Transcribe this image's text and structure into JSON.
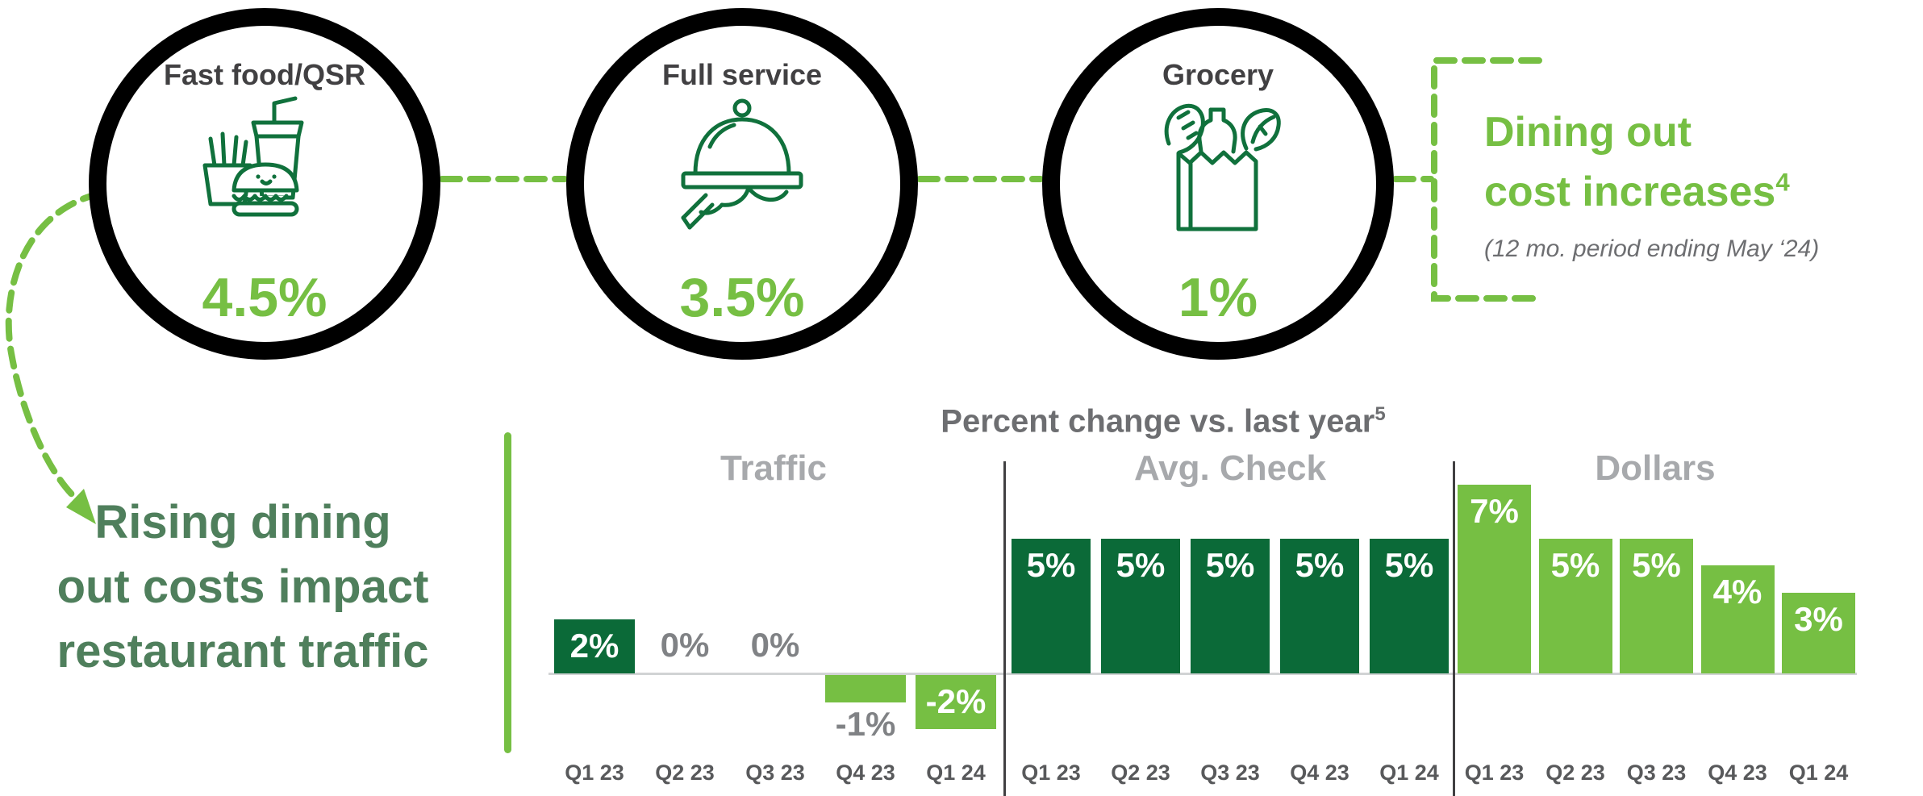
{
  "colors": {
    "dark_green": "#0b6a38",
    "light_green": "#76bf43",
    "icon_green": "#10713c",
    "muted_green": "#4f7f5c",
    "ring_black": "#000000",
    "circle_label_gray": "#414042",
    "title_gray": "#6d6e71",
    "group_header_gray": "#a7a9ac",
    "zero_label_gray": "#808285",
    "category_gray": "#58595b",
    "baseline_gray": "#d1d3d4"
  },
  "circles": [
    {
      "label": "Fast food/QSR",
      "value": "4.5%",
      "icon": "fast-food-icon"
    },
    {
      "label": "Full service",
      "value": "3.5%",
      "icon": "serving-cloche-icon"
    },
    {
      "label": "Grocery",
      "value": "1%",
      "icon": "grocery-bag-icon"
    }
  ],
  "callout": {
    "line1": "Dining out",
    "line2": "cost increases",
    "superscript": "4",
    "subtitle": "(12 mo. period ending May ‘24)"
  },
  "left_note": {
    "line1": "Rising dining",
    "line2": "out costs impact",
    "line3": "restaurant traffic"
  },
  "chart_data": {
    "type": "bar",
    "title": "Percent change vs. last year",
    "title_superscript": "5",
    "unit": "%",
    "categories": [
      "Q1 23",
      "Q2 23",
      "Q3 23",
      "Q4 23",
      "Q1 24"
    ],
    "ylim": [
      -2.5,
      7.5
    ],
    "grid": false,
    "legend": null,
    "groups": [
      {
        "name": "Traffic",
        "values": [
          2,
          0,
          0,
          -1,
          -2
        ],
        "labels": [
          "2%",
          "0%",
          "0%",
          "-1%",
          "-2%"
        ],
        "bar_colors": [
          "#0b6a38",
          null,
          null,
          "#76bf43",
          "#76bf43"
        ],
        "label_inside": [
          true,
          false,
          false,
          false,
          true
        ]
      },
      {
        "name": "Avg. Check",
        "values": [
          5,
          5,
          5,
          5,
          5
        ],
        "labels": [
          "5%",
          "5%",
          "5%",
          "5%",
          "5%"
        ],
        "bar_colors": [
          "#0b6a38",
          "#0b6a38",
          "#0b6a38",
          "#0b6a38",
          "#0b6a38"
        ],
        "label_inside": [
          true,
          true,
          true,
          true,
          true
        ]
      },
      {
        "name": "Dollars",
        "values": [
          7,
          5,
          5,
          4,
          3
        ],
        "labels": [
          "7%",
          "5%",
          "5%",
          "4%",
          "3%"
        ],
        "bar_colors": [
          "#76bf43",
          "#76bf43",
          "#76bf43",
          "#76bf43",
          "#76bf43"
        ],
        "label_inside": [
          true,
          true,
          true,
          true,
          true
        ]
      }
    ]
  }
}
